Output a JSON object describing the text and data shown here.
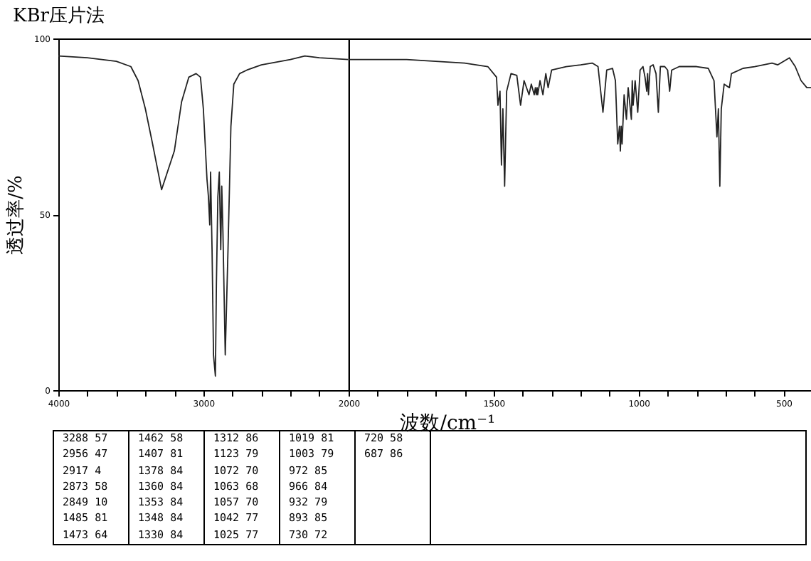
{
  "chart_data": [
    {
      "type": "line",
      "title": "KBr压片法",
      "ylabel": "透过率/%",
      "xlim": [
        4000,
        2000
      ],
      "ylim": [
        0,
        100
      ],
      "xticks": [
        4000,
        {
          "value": 3800,
          "label": null
        },
        {
          "value": 3600,
          "label": null
        },
        {
          "value": 3400,
          "label": null
        },
        {
          "value": 3200,
          "label": null
        },
        3000,
        {
          "value": 2800,
          "label": null
        },
        {
          "value": 2600,
          "label": null
        },
        {
          "value": 2400,
          "label": null
        },
        {
          "value": 2200,
          "label": null
        }
      ],
      "yticks": [
        0,
        50,
        100
      ],
      "grid": false,
      "series": [
        {
          "color": "#222222",
          "x": [
            4000,
            3800,
            3600,
            3500,
            3450,
            3400,
            3350,
            3288,
            3200,
            3150,
            3100,
            3050,
            3020,
            3000,
            2975,
            2965,
            2956,
            2950,
            2940,
            2930,
            2917,
            2910,
            2900,
            2890,
            2880,
            2873,
            2865,
            2849,
            2830,
            2810,
            2790,
            2750,
            2700,
            2600,
            2400,
            2300,
            2200,
            2000
          ],
          "values": [
            95,
            94.5,
            93.5,
            92,
            88,
            80,
            70,
            57,
            68,
            82,
            89,
            90,
            89,
            80,
            60,
            55,
            47,
            62,
            40,
            10,
            4,
            30,
            55,
            62,
            40,
            58,
            45,
            10,
            40,
            75,
            87,
            90,
            91,
            92.5,
            94,
            95,
            94.5,
            94
          ]
        }
      ],
      "annotations": [
        "3288 57",
        "2956 47",
        "2917 4",
        "2873 58",
        "2849 10",
        "1485 81",
        "1473 64",
        "1462 58",
        "1407 81",
        "1378 84",
        "1360 84",
        "1353 84",
        "1348 84",
        "1330 84",
        "1312 86",
        "1123 79",
        "1072 70",
        "1063 68",
        "1057 70",
        "1042 77",
        "1025 77",
        "1019 81",
        "1003 79",
        "972 85",
        "966 84",
        "932 79",
        "893 85",
        "730 72",
        "720 58",
        "687 86"
      ]
    },
    {
      "type": "line",
      "xlabel": "波数/cm⁻¹",
      "xlim": [
        2000,
        400
      ],
      "ylim": [
        0,
        100
      ],
      "tick_labels": "x",
      "xticks": [
        2000,
        {
          "value": 1900,
          "label": null
        },
        {
          "value": 1800,
          "label": null
        },
        {
          "value": 1700,
          "label": null
        },
        {
          "value": 1600,
          "label": null
        },
        1500,
        {
          "value": 1400,
          "label": null
        },
        {
          "value": 1300,
          "label": null
        },
        {
          "value": 1200,
          "label": null
        },
        {
          "value": 1100,
          "label": null
        },
        1000,
        {
          "value": 900,
          "label": null
        },
        {
          "value": 800,
          "label": null
        },
        {
          "value": 700,
          "label": null
        },
        {
          "value": 600,
          "label": null
        },
        500
      ],
      "grid": false,
      "series": [
        {
          "color": "#222222",
          "x": [
            2000,
            1900,
            1800,
            1700,
            1600,
            1520,
            1490,
            1485,
            1478,
            1473,
            1468,
            1462,
            1455,
            1440,
            1420,
            1407,
            1395,
            1378,
            1370,
            1360,
            1356,
            1353,
            1350,
            1348,
            1340,
            1330,
            1320,
            1312,
            1300,
            1250,
            1200,
            1160,
            1140,
            1123,
            1110,
            1090,
            1080,
            1072,
            1066,
            1063,
            1060,
            1057,
            1050,
            1042,
            1036,
            1025,
            1022,
            1019,
            1012,
            1003,
            995,
            985,
            978,
            972,
            969,
            966,
            960,
            950,
            940,
            932,
            925,
            910,
            900,
            893,
            886,
            860,
            800,
            760,
            740,
            730,
            725,
            720,
            715,
            705,
            687,
            680,
            640,
            600,
            540,
            520,
            480,
            460,
            440,
            420,
            400
          ],
          "values": [
            94,
            94,
            94,
            93.5,
            93,
            92,
            89,
            81,
            85,
            64,
            80,
            58,
            85,
            90,
            89.5,
            81,
            88,
            84,
            87,
            84,
            86,
            84,
            86,
            84,
            88,
            84,
            90,
            86,
            91,
            92,
            92.5,
            93,
            92,
            79,
            91,
            91.5,
            88,
            70,
            75,
            68,
            75,
            70,
            84,
            77,
            86,
            77,
            88,
            81,
            88,
            79,
            91,
            92,
            89,
            85,
            90,
            84,
            92,
            92.5,
            90,
            79,
            92,
            92,
            91,
            85,
            91,
            92,
            92,
            91.5,
            88,
            72,
            80,
            58,
            80,
            87,
            86,
            90,
            91.5,
            92,
            93,
            92.5,
            94.5,
            92,
            88,
            86,
            86
          ]
        }
      ]
    }
  ]
}
